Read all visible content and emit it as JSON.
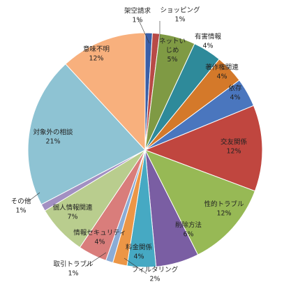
{
  "chart_data": {
    "type": "pie",
    "title": "",
    "series": [
      {
        "labels": [
          "架空請求",
          "ショッピング",
          "ネットいじめ",
          "有害情報",
          "著作権関連",
          "依存",
          "交友関係",
          "性的トラブル",
          "削除方法",
          "料金関係",
          "フィルタリング",
          "取引トラブル",
          "情報セキュリティ",
          "個人情報関連",
          "その他",
          "対象外の相談",
          "意味不明"
        ],
        "values": [
          1,
          1,
          5,
          4,
          4,
          4,
          12,
          12,
          6,
          4,
          2,
          1,
          4,
          7,
          1,
          21,
          12
        ],
        "value_labels": [
          "1%",
          "1%",
          "5%",
          "4%",
          "4%",
          "4%",
          "12%",
          "12%",
          "6%",
          "4%",
          "2%",
          "1%",
          "4%",
          "7%",
          "1%",
          "21%",
          "12%"
        ],
        "label_lines": [
          [
            "架空請求"
          ],
          [
            "ショッピング"
          ],
          [
            "ネットい",
            "じめ"
          ],
          [
            "有害情報"
          ],
          [
            "著作権関連"
          ],
          [
            "依存"
          ],
          [
            "交友関係"
          ],
          [
            "性的トラブル"
          ],
          [
            "削除方法"
          ],
          [
            "料金関係"
          ],
          [
            "フィルタリング"
          ],
          [
            "取引トラブル"
          ],
          [
            "情報セキュリティ"
          ],
          [
            "個人情報関連"
          ],
          [
            "その他"
          ],
          [
            "対象外の相談"
          ],
          [
            "意味不明"
          ]
        ],
        "colors": [
          "#3a5fa8",
          "#b84a47",
          "#7f9a44",
          "#2e8a9a",
          "#d4792a",
          "#4a76be",
          "#c0463f",
          "#97b955",
          "#7a5ea3",
          "#46a9c3",
          "#ec9646",
          "#8bacd6",
          "#d97d7b",
          "#b9cd8e",
          "#a290c2",
          "#8ec3d3",
          "#f8b07d"
        ]
      }
    ]
  }
}
